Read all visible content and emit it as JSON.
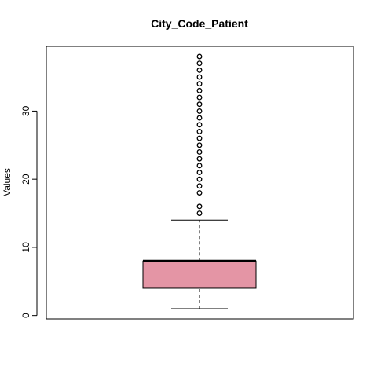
{
  "chart_data": {
    "type": "boxplot",
    "title": "City_Code_Patient",
    "xlabel": "",
    "ylabel": "Values",
    "ylim": [
      -0.5,
      39.5
    ],
    "yticks": [
      0,
      10,
      20,
      30
    ],
    "grid": false,
    "legend": "none",
    "box": {
      "min": 1,
      "q1": 4,
      "median": 8,
      "q3": 8,
      "max": 14,
      "fill": "#e495a5",
      "outliers": [
        15,
        16,
        18,
        19,
        20,
        21,
        22,
        23,
        24,
        25,
        26,
        27,
        28,
        29,
        30,
        31,
        32,
        33,
        34,
        35,
        36,
        37,
        38
      ]
    }
  }
}
